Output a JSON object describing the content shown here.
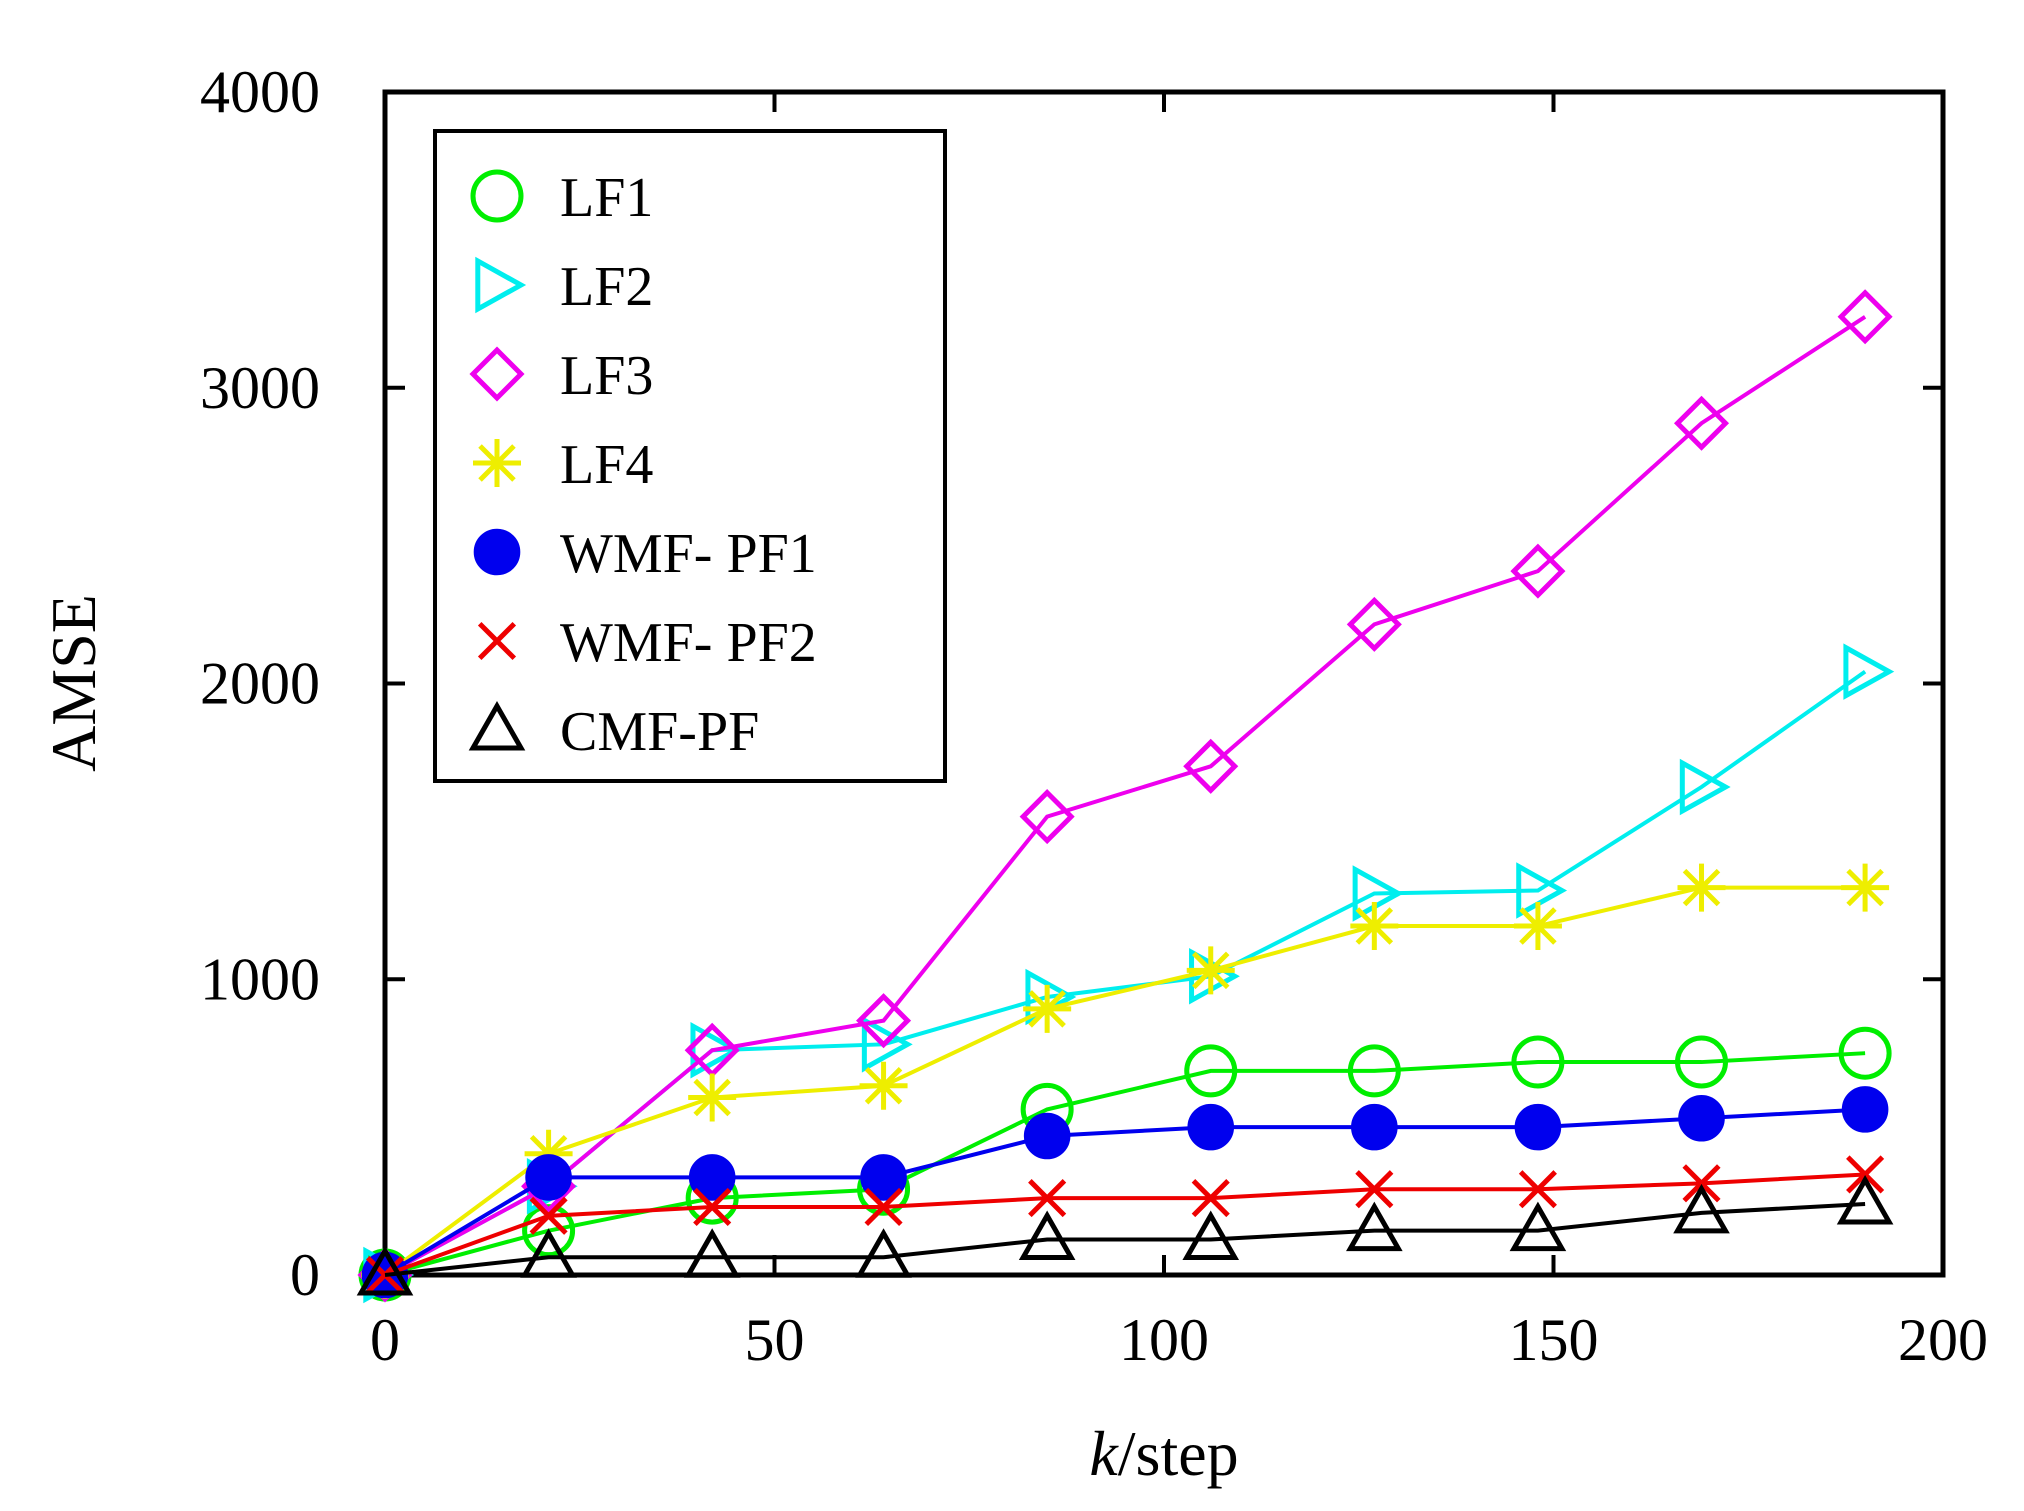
{
  "chart_data": {
    "type": "line",
    "title": "",
    "xlabel_italic": "k",
    "xlabel_rest": "/step",
    "ylabel": "AMSE",
    "xlim": [
      0,
      200
    ],
    "ylim": [
      0,
      4000
    ],
    "xticks": [
      0,
      50,
      100,
      150,
      200
    ],
    "yticks": [
      0,
      1000,
      2000,
      3000,
      4000
    ],
    "x": [
      0,
      21,
      42,
      64,
      85,
      106,
      127,
      148,
      169,
      190
    ],
    "legend_position": "top-left",
    "series": [
      {
        "name": "LF1",
        "marker": "circle-open",
        "color": "#00ee00",
        "values": [
          0,
          150,
          260,
          290,
          560,
          690,
          690,
          720,
          720,
          750
        ]
      },
      {
        "name": "LF2",
        "marker": "triangle-right-open",
        "color": "#00eeee",
        "values": [
          0,
          300,
          760,
          780,
          940,
          1010,
          1290,
          1300,
          1650,
          2040
        ]
      },
      {
        "name": "LF3",
        "marker": "diamond-open",
        "color": "#ee00ee",
        "values": [
          0,
          300,
          760,
          860,
          1550,
          1720,
          2200,
          2380,
          2880,
          3240
        ]
      },
      {
        "name": "LF4",
        "marker": "asterisk",
        "color": "#eeee00",
        "values": [
          0,
          410,
          600,
          640,
          900,
          1030,
          1180,
          1180,
          1310,
          1310
        ]
      },
      {
        "name": "WMF- PF1",
        "marker": "circle-filled",
        "color": "#0000ee",
        "values": [
          0,
          330,
          330,
          330,
          470,
          500,
          500,
          500,
          530,
          560
        ]
      },
      {
        "name": "WMF- PF2",
        "marker": "x",
        "color": "#ee0000",
        "values": [
          0,
          200,
          230,
          230,
          260,
          260,
          290,
          290,
          310,
          340
        ]
      },
      {
        "name": "CMF-PF",
        "marker": "triangle-up-open",
        "color": "#000000",
        "values": [
          0,
          60,
          60,
          60,
          120,
          120,
          150,
          150,
          210,
          240
        ]
      }
    ]
  }
}
